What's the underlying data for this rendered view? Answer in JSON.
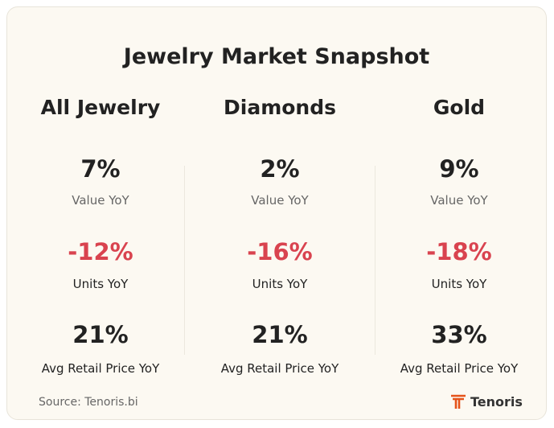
{
  "title": "Jewelry Market Snapshot",
  "columns": [
    {
      "heading": "All Jewelry",
      "metrics": [
        {
          "value": "7%",
          "label": "Value YoY"
        },
        {
          "value": "-12%",
          "label": "Units YoY"
        },
        {
          "value": "21%",
          "label": "Avg Retail Price YoY"
        }
      ]
    },
    {
      "heading": "Diamonds",
      "metrics": [
        {
          "value": "2%",
          "label": "Value YoY"
        },
        {
          "value": "-16%",
          "label": "Units YoY"
        },
        {
          "value": "21%",
          "label": "Avg Retail Price YoY"
        }
      ]
    },
    {
      "heading": "Gold",
      "metrics": [
        {
          "value": "9%",
          "label": "Value YoY"
        },
        {
          "value": "-18%",
          "label": "Units YoY"
        },
        {
          "value": "33%",
          "label": "Avg Retail Price YoY"
        }
      ]
    }
  ],
  "footer": {
    "source": "Source: Tenoris.bi",
    "brand": "Tenoris"
  }
}
